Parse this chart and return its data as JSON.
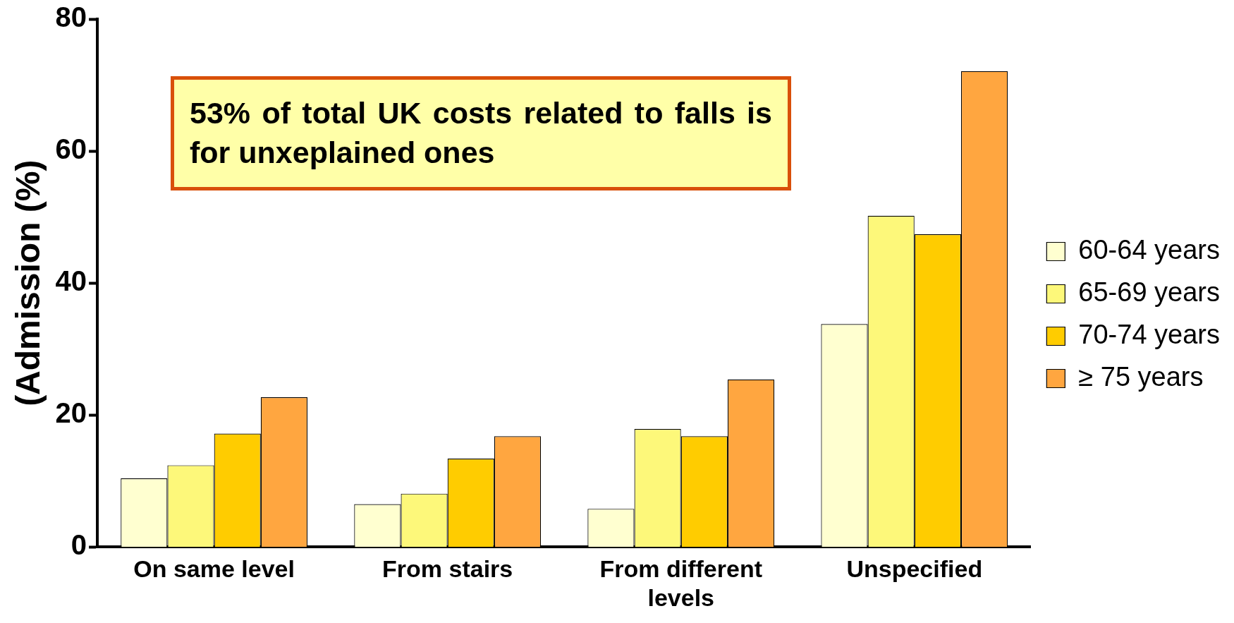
{
  "chart_data": {
    "type": "bar",
    "ylabel": "(Admission (%)",
    "categories": [
      "On same level",
      "From stairs",
      "From different levels",
      "Unspecified"
    ],
    "series": [
      {
        "name": "60-64 years",
        "color": "#ffffd0",
        "values": [
          10.4,
          6.5,
          5.8,
          33.8
        ]
      },
      {
        "name": "65-69 years",
        "color": "#fdf87a",
        "values": [
          12.4,
          8.1,
          17.9,
          50.2
        ]
      },
      {
        "name": "70-74 years",
        "color": "#ffcc00",
        "values": [
          17.2,
          13.4,
          16.8,
          47.4
        ]
      },
      {
        "name": "≥ 75 years",
        "color": "#ffa640",
        "values": [
          22.7,
          16.8,
          25.4,
          72.1
        ]
      }
    ],
    "ylim": [
      0,
      80
    ],
    "yticks": [
      0,
      20,
      40,
      60,
      80
    ],
    "grid": false,
    "legend": "right",
    "annotations": [
      "53% of total UK costs related to falls is for unxeplained ones"
    ]
  }
}
